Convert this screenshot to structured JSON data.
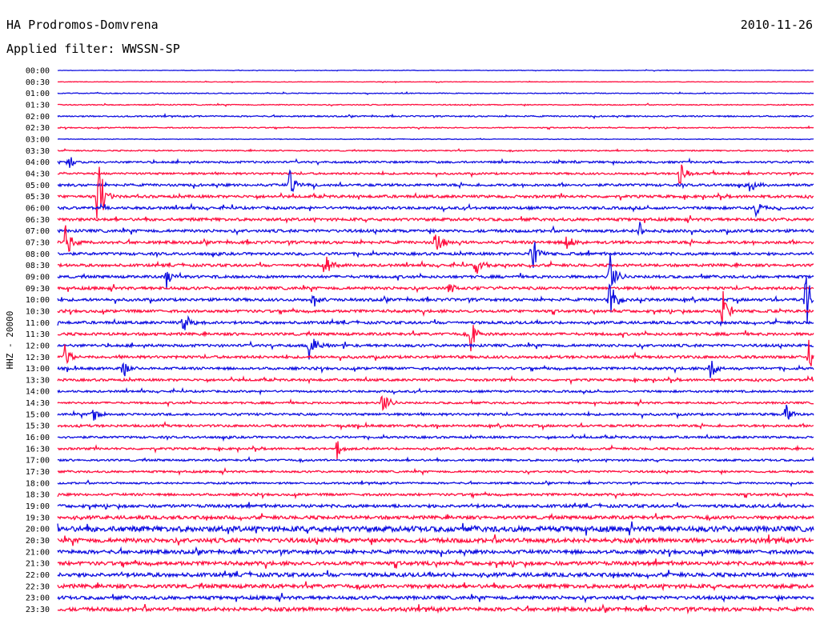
{
  "header": {
    "station": "HA Prodromos-Domvrena",
    "date": "2010-11-26",
    "filter": "Applied filter: WWSSN-SP"
  },
  "colors": {
    "blue": "#1010e0",
    "red": "#ff1040",
    "text": "#000000"
  },
  "chart_data": {
    "type": "line",
    "ylabel": "HHZ - 20000",
    "x_range_minutes": [
      0,
      30
    ],
    "rows": [
      "00:00",
      "00:30",
      "01:00",
      "01:30",
      "02:00",
      "02:30",
      "03:00",
      "03:30",
      "04:00",
      "04:30",
      "05:00",
      "05:30",
      "06:00",
      "06:30",
      "07:00",
      "07:30",
      "08:00",
      "08:30",
      "09:00",
      "09:30",
      "10:00",
      "10:30",
      "11:00",
      "11:30",
      "12:00",
      "12:30",
      "13:00",
      "13:30",
      "14:00",
      "14:30",
      "15:00",
      "15:30",
      "16:00",
      "16:30",
      "17:00",
      "17:30",
      "18:00",
      "18:30",
      "19:00",
      "19:30",
      "20:00",
      "20:30",
      "21:00",
      "21:30",
      "22:00",
      "22:30",
      "23:00",
      "23:30"
    ],
    "row_colors": [
      "blue",
      "red"
    ],
    "noise_level": [
      0.3,
      0.3,
      0.5,
      0.6,
      0.8,
      0.6,
      0.4,
      0.7,
      1.2,
      1.2,
      1.5,
      1.6,
      1.6,
      1.7,
      1.7,
      1.7,
      1.6,
      1.6,
      1.6,
      1.7,
      1.7,
      1.6,
      1.6,
      1.6,
      1.6,
      1.6,
      1.5,
      1.4,
      1.2,
      1.2,
      1.4,
      1.4,
      1.3,
      1.3,
      1.2,
      1.2,
      1.1,
      1.4,
      1.8,
      2.0,
      3.2,
      2.6,
      2.2,
      2.2,
      2.3,
      2.3,
      2.0,
      2.2
    ],
    "events": [
      {
        "row": 8,
        "minute": 0.4,
        "amplitude": 13
      },
      {
        "row": 11,
        "minute": 1.6,
        "amplitude": 60
      },
      {
        "row": 10,
        "minute": 9.2,
        "amplitude": 20
      },
      {
        "row": 10,
        "minute": 27.5,
        "amplitude": 10
      },
      {
        "row": 9,
        "minute": 24.7,
        "amplitude": 22
      },
      {
        "row": 12,
        "minute": 27.7,
        "amplitude": 14
      },
      {
        "row": 14,
        "minute": 23.1,
        "amplitude": 14
      },
      {
        "row": 15,
        "minute": 0.3,
        "amplitude": 30
      },
      {
        "row": 15,
        "minute": 15.0,
        "amplitude": 22
      },
      {
        "row": 15,
        "minute": 20.2,
        "amplitude": 18
      },
      {
        "row": 16,
        "minute": 18.8,
        "amplitude": 30
      },
      {
        "row": 17,
        "minute": 10.6,
        "amplitude": 18
      },
      {
        "row": 17,
        "minute": 16.6,
        "amplitude": 18
      },
      {
        "row": 18,
        "minute": 4.3,
        "amplitude": 18
      },
      {
        "row": 18,
        "minute": 21.9,
        "amplitude": 44
      },
      {
        "row": 19,
        "minute": 15.5,
        "amplitude": 8
      },
      {
        "row": 20,
        "minute": 10.1,
        "amplitude": 12
      },
      {
        "row": 20,
        "minute": 21.9,
        "amplitude": 30
      },
      {
        "row": 20,
        "minute": 29.7,
        "amplitude": 44
      },
      {
        "row": 21,
        "minute": 26.4,
        "amplitude": 30
      },
      {
        "row": 22,
        "minute": 5.0,
        "amplitude": 26
      },
      {
        "row": 23,
        "minute": 16.4,
        "amplitude": 22
      },
      {
        "row": 24,
        "minute": 10.0,
        "amplitude": 26
      },
      {
        "row": 25,
        "minute": 0.3,
        "amplitude": 20
      },
      {
        "row": 25,
        "minute": 29.8,
        "amplitude": 26
      },
      {
        "row": 26,
        "minute": 2.6,
        "amplitude": 16
      },
      {
        "row": 26,
        "minute": 25.9,
        "amplitude": 20
      },
      {
        "row": 29,
        "minute": 12.9,
        "amplitude": 24
      },
      {
        "row": 30,
        "minute": 1.4,
        "amplitude": 10
      },
      {
        "row": 30,
        "minute": 28.9,
        "amplitude": 12
      },
      {
        "row": 33,
        "minute": 11.1,
        "amplitude": 14
      }
    ]
  }
}
